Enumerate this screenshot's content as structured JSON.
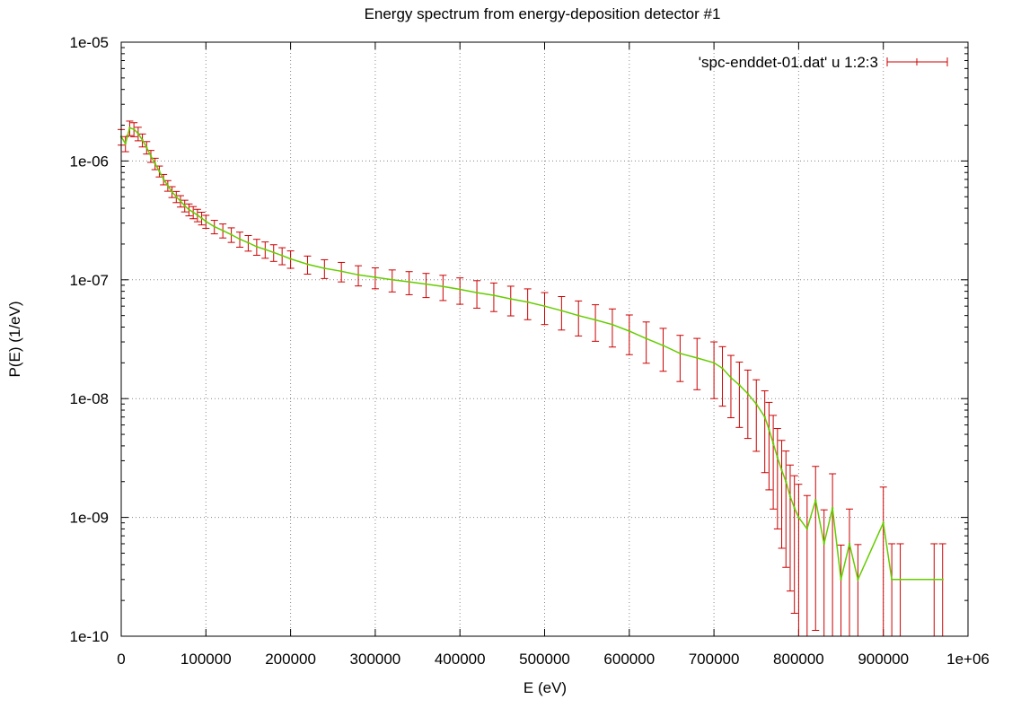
{
  "chart_data": {
    "type": "line",
    "title": "Energy spectrum from energy-deposition detector #1",
    "xlabel": "E (eV)",
    "ylabel": "P(E) (1/eV)",
    "xlim": [
      0,
      1000000
    ],
    "ylim": [
      1e-10,
      1e-05
    ],
    "yscale": "log",
    "grid": true,
    "legend_position": "top-right",
    "x_tick_labels": [
      "0",
      "100000",
      "200000",
      "300000",
      "400000",
      "500000",
      "600000",
      "700000",
      "800000",
      "900000",
      "1e+06"
    ],
    "y_tick_labels": [
      "1e-10",
      "1e-09",
      "1e-08",
      "1e-07",
      "1e-06",
      "1e-05"
    ],
    "series": [
      {
        "name": "'spc-enddet-01.dat' u 1:2:3",
        "error_color": "#cc0000",
        "line_color": "#66cc00",
        "rel_error_profile": [
          [
            0,
            0.15
          ],
          [
            50000,
            0.1
          ],
          [
            150000,
            0.15
          ],
          [
            300000,
            0.2
          ],
          [
            500000,
            0.3
          ],
          [
            650000,
            0.4
          ],
          [
            750000,
            0.6
          ],
          [
            800000,
            0.9
          ],
          [
            900000,
            1.0
          ]
        ],
        "x": [
          0,
          5000,
          10000,
          15000,
          20000,
          25000,
          30000,
          35000,
          40000,
          45000,
          50000,
          55000,
          60000,
          65000,
          70000,
          75000,
          80000,
          85000,
          90000,
          95000,
          100000,
          110000,
          120000,
          130000,
          140000,
          150000,
          160000,
          170000,
          180000,
          190000,
          200000,
          220000,
          240000,
          260000,
          280000,
          300000,
          320000,
          340000,
          360000,
          380000,
          400000,
          420000,
          440000,
          460000,
          480000,
          500000,
          520000,
          540000,
          560000,
          580000,
          600000,
          620000,
          640000,
          660000,
          680000,
          700000,
          710000,
          720000,
          730000,
          740000,
          750000,
          760000,
          765000,
          770000,
          775000,
          780000,
          785000,
          790000,
          795000,
          800000,
          810000,
          820000,
          830000,
          840000,
          850000,
          860000,
          870000,
          900000,
          910000,
          920000,
          960000,
          970000
        ],
        "y": [
          1.6e-06,
          1.4e-06,
          1.9e-06,
          1.85e-06,
          1.7e-06,
          1.5e-06,
          1.3e-06,
          1.1e-06,
          9.5e-07,
          8.2e-07,
          7e-07,
          6.2e-07,
          5.5e-07,
          5e-07,
          4.6e-07,
          4.2e-07,
          3.9e-07,
          3.7e-07,
          3.5e-07,
          3.3e-07,
          3.1e-07,
          2.8e-07,
          2.6e-07,
          2.4e-07,
          2.2e-07,
          2.05e-07,
          1.9e-07,
          1.8e-07,
          1.7e-07,
          1.6e-07,
          1.5e-07,
          1.35e-07,
          1.25e-07,
          1.18e-07,
          1.1e-07,
          1.05e-07,
          1e-07,
          9.6e-08,
          9.2e-08,
          8.8e-08,
          8.3e-08,
          7.8e-08,
          7.4e-08,
          6.9e-08,
          6.5e-08,
          6e-08,
          5.5e-08,
          5e-08,
          4.6e-08,
          4.2e-08,
          3.7e-08,
          3.2e-08,
          2.8e-08,
          2.4e-08,
          2.2e-08,
          2e-08,
          1.8e-08,
          1.5e-08,
          1.3e-08,
          1.1e-08,
          9e-09,
          7e-09,
          5.5e-09,
          4.2e-09,
          3.2e-09,
          2.5e-09,
          2e-09,
          1.5e-09,
          1.2e-09,
          1e-09,
          8e-10,
          1.4e-09,
          6e-10,
          1.2e-09,
          3e-10,
          6e-10,
          3e-10,
          9e-10,
          3e-10,
          3e-10,
          3e-10,
          3e-10
        ]
      }
    ]
  }
}
